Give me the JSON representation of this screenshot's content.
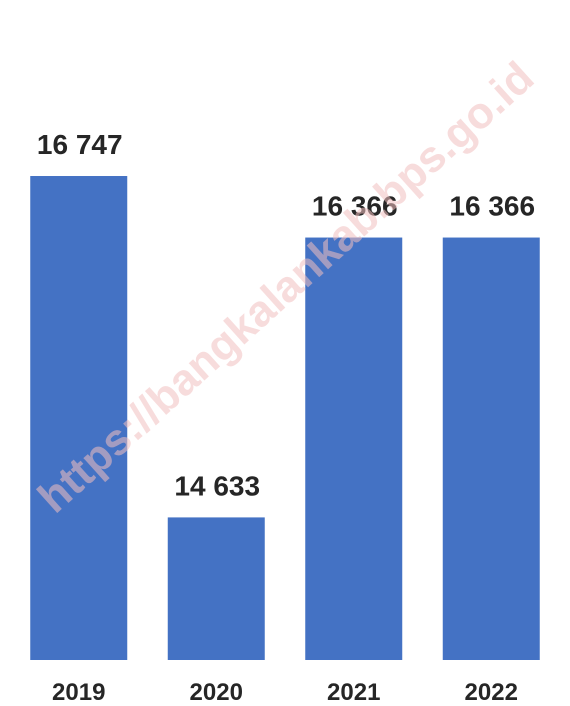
{
  "chart_data": {
    "type": "bar",
    "categories": [
      "2019",
      "2020",
      "2021",
      "2022"
    ],
    "values": [
      16747,
      14633,
      16366,
      16366
    ],
    "data_labels": [
      "16 747",
      "14 633",
      "16 366",
      "16 366"
    ],
    "title": "",
    "xlabel": "",
    "ylabel": "",
    "ylim": [
      13750,
      16970
    ],
    "grid": false,
    "legend": "none",
    "bar_color": "#4472C4"
  },
  "watermark": {
    "text": "https://bangkalankab.bps.go.id"
  }
}
